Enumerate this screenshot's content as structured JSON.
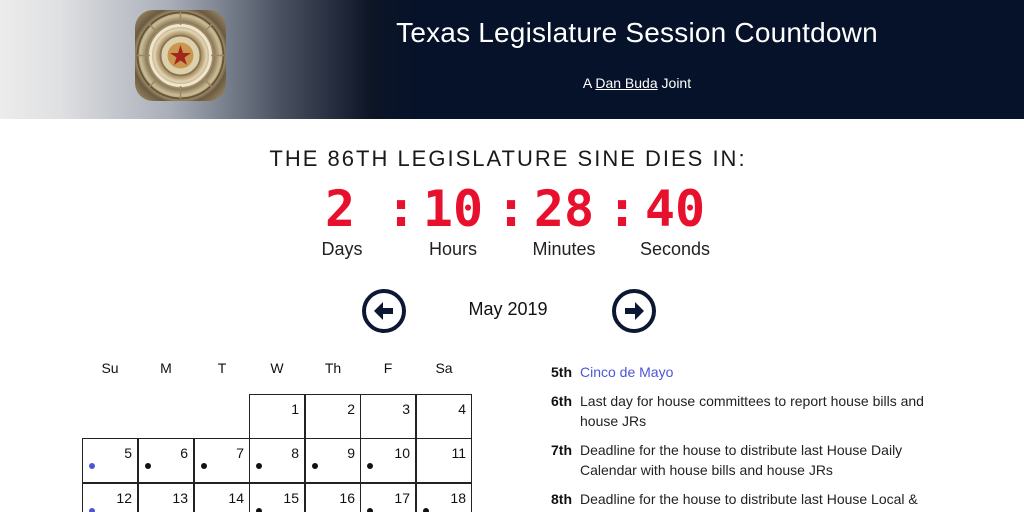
{
  "header": {
    "title": "Texas Legislature Session Countdown",
    "byline_prefix": "A",
    "byline_link": "Dan Buda",
    "byline_suffix": "Joint"
  },
  "countdown": {
    "heading": "THE 86TH LEGISLATURE SINE DIES IN:",
    "days": "2",
    "hours": "10",
    "minutes": "28",
    "seconds": "40",
    "separator": ":",
    "days_label": "Days",
    "hours_label": "Hours",
    "minutes_label": "Minutes",
    "seconds_label": "Seconds",
    "color": "#e8112d"
  },
  "calendar": {
    "month_label": "May 2019",
    "weekdays": [
      "Su",
      "M",
      "T",
      "W",
      "Th",
      "F",
      "Sa"
    ],
    "weeks": [
      [
        null,
        null,
        null,
        "1",
        "2",
        "3",
        "4"
      ],
      [
        "5",
        "6",
        "7",
        "8",
        "9",
        "10",
        "11"
      ],
      [
        "12",
        "13",
        "14",
        "15",
        "16",
        "17",
        "18"
      ]
    ],
    "marked_days": [
      "5",
      "6",
      "7",
      "8",
      "9",
      "10",
      "12",
      "15",
      "17",
      "18"
    ],
    "holiday_days": [
      "5",
      "12"
    ]
  },
  "events": [
    {
      "day": "5th",
      "text": "Cinco de Mayo",
      "link": true
    },
    {
      "day": "6th",
      "text": "Last day for house committees to report house bills and house JRs",
      "link": false
    },
    {
      "day": "7th",
      "text": "Deadline for the house to distribute last House Daily Calendar with house bills and house JRs",
      "link": false
    },
    {
      "day": "8th",
      "text": "Deadline for the house to distribute last House Local &",
      "link": false
    }
  ],
  "colors": {
    "header_bg": "#06122a",
    "accent_red": "#e8112d",
    "link_blue": "#4b56d6",
    "nav_button": "#0c1733"
  }
}
